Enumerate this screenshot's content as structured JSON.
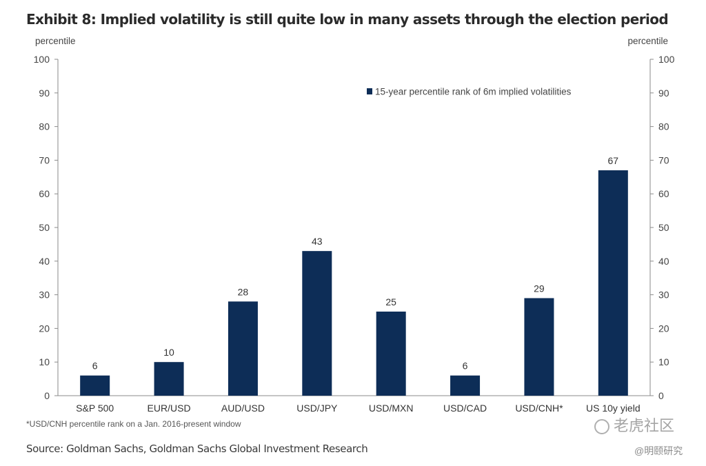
{
  "title": "Exhibit 8: Implied volatility is still quite low in many assets through the election period",
  "footnote": "*USD/CNH  percentile rank on a Jan. 2016-present window",
  "source": "Source: Goldman Sachs, Goldman Sachs Global Investment Research",
  "watermark": {
    "primary": "老虎社区",
    "secondary": "@明颐研究"
  },
  "chart_data": {
    "type": "bar",
    "title": "Exhibit 8: Implied volatility is still quite low in many assets through the election period",
    "ylabel_left": "percentile",
    "ylabel_right": "percentile",
    "ylim": [
      0,
      100
    ],
    "yticks": [
      0,
      10,
      20,
      30,
      40,
      50,
      60,
      70,
      80,
      90,
      100
    ],
    "categories": [
      "S&P 500",
      "EUR/USD",
      "AUD/USD",
      "USD/JPY",
      "USD/MXN",
      "USD/CAD",
      "USD/CNH*",
      "US 10y yield"
    ],
    "series": [
      {
        "name": "15-year percentile rank of 6m implied volatilities",
        "values": [
          6,
          10,
          28,
          43,
          25,
          6,
          29,
          67
        ],
        "color": "#0d2d57"
      }
    ],
    "data_labels": true,
    "legend_position": "top-right",
    "grid": false
  }
}
